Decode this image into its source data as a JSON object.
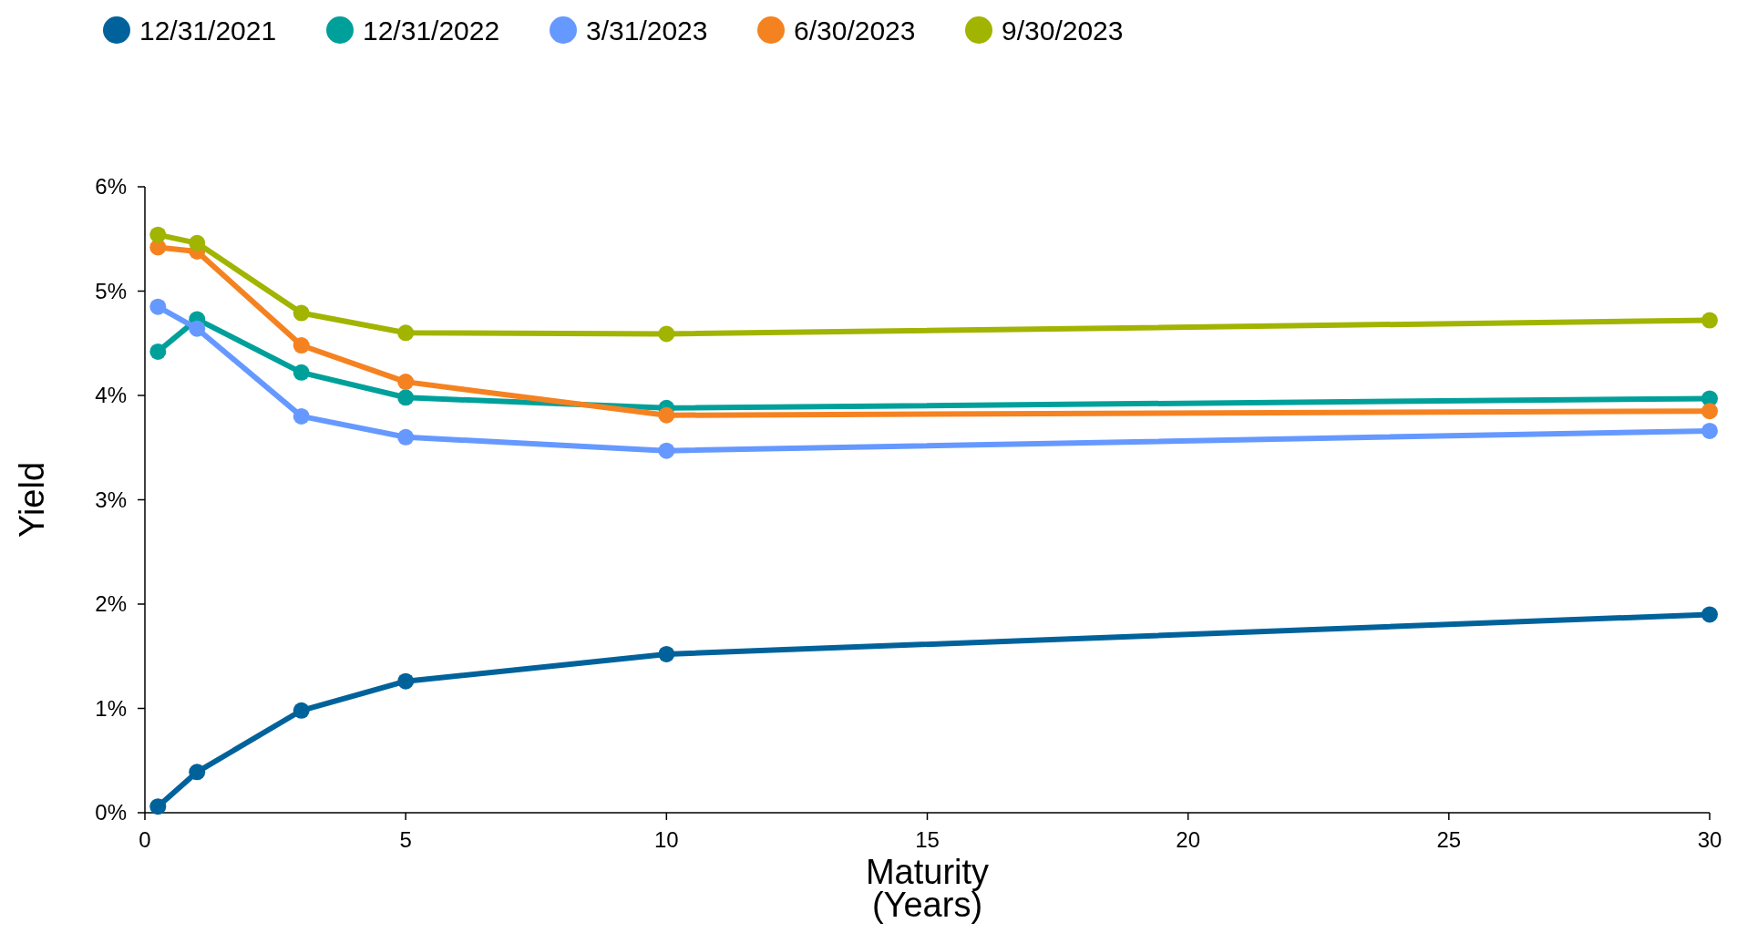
{
  "chart_data": {
    "type": "line",
    "xlabel": "Maturity\n(Years)",
    "ylabel": "Yield",
    "x": [
      0.25,
      1,
      3,
      5,
      10,
      30
    ],
    "series": [
      {
        "name": "12/31/2021",
        "color": "#00629b",
        "values": [
          0.06,
          0.39,
          0.98,
          1.26,
          1.52,
          1.9
        ]
      },
      {
        "name": "12/31/2022",
        "color": "#00a09a",
        "values": [
          4.42,
          4.73,
          4.22,
          3.98,
          3.88,
          3.97
        ]
      },
      {
        "name": "3/31/2023",
        "color": "#6699ff",
        "values": [
          4.85,
          4.64,
          3.8,
          3.6,
          3.47,
          3.66
        ]
      },
      {
        "name": "6/30/2023",
        "color": "#f58220",
        "values": [
          5.42,
          5.38,
          4.48,
          4.13,
          3.81,
          3.85
        ]
      },
      {
        "name": "9/30/2023",
        "color": "#a0b400",
        "values": [
          5.54,
          5.46,
          4.79,
          4.6,
          4.59,
          4.72
        ]
      }
    ],
    "xlim": [
      0,
      30
    ],
    "xticks": [
      0,
      5,
      10,
      15,
      20,
      25,
      30
    ],
    "ylim": [
      0,
      6
    ],
    "yticks": [
      {
        "value": 0,
        "label": "0%"
      },
      {
        "value": 1,
        "label": "1%"
      },
      {
        "value": 2,
        "label": "2%"
      },
      {
        "value": 3,
        "label": "3%"
      },
      {
        "value": 4,
        "label": "4%"
      },
      {
        "value": 5,
        "label": "5%"
      },
      {
        "value": 6,
        "label": "6%"
      }
    ],
    "grid": false,
    "legend": "top left",
    "marker": "circle",
    "line_style": "solid"
  }
}
